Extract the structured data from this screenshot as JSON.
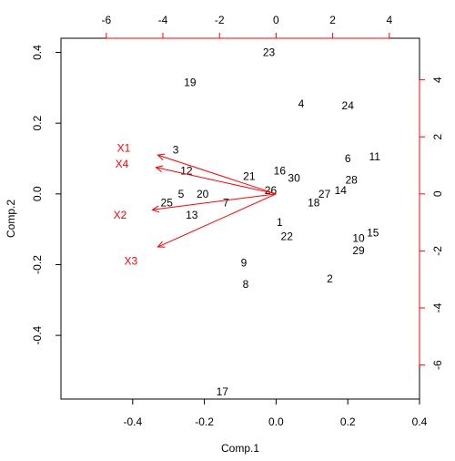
{
  "chart_data": {
    "type": "scatter",
    "subtype": "biplot",
    "title": "",
    "xlabel": "Comp.1",
    "ylabel": "Comp.2",
    "xlim": [
      -0.6,
      0.4
    ],
    "ylim": [
      -0.58,
      0.44
    ],
    "x_ticks": [
      "-0.4",
      "-0.2",
      "0.0",
      "0.2",
      "0.4"
    ],
    "y_ticks": [
      "-0.4",
      "-0.2",
      "0.0",
      "0.2",
      "0.4"
    ],
    "top_ticks": [
      "-6",
      "-4",
      "-2",
      "0",
      "2",
      "4"
    ],
    "right_ticks": [
      "-6",
      "-4",
      "-2",
      "0",
      "2",
      "4"
    ],
    "observations": [
      {
        "label": "1",
        "x": 0.01,
        "y": -0.08
      },
      {
        "label": "2",
        "x": 0.15,
        "y": -0.24
      },
      {
        "label": "3",
        "x": -0.28,
        "y": 0.125
      },
      {
        "label": "4",
        "x": 0.07,
        "y": 0.255
      },
      {
        "label": "5",
        "x": -0.265,
        "y": 0.0
      },
      {
        "label": "6",
        "x": 0.2,
        "y": 0.1
      },
      {
        "label": "7",
        "x": -0.14,
        "y": -0.025
      },
      {
        "label": "8",
        "x": -0.085,
        "y": -0.255
      },
      {
        "label": "9",
        "x": -0.09,
        "y": -0.195
      },
      {
        "label": "10",
        "x": 0.23,
        "y": -0.125
      },
      {
        "label": "11",
        "x": 0.275,
        "y": 0.105
      },
      {
        "label": "12",
        "x": -0.25,
        "y": 0.065
      },
      {
        "label": "13",
        "x": -0.235,
        "y": -0.06
      },
      {
        "label": "14",
        "x": 0.18,
        "y": 0.01
      },
      {
        "label": "15",
        "x": 0.27,
        "y": -0.11
      },
      {
        "label": "16",
        "x": 0.01,
        "y": 0.065
      },
      {
        "label": "17",
        "x": -0.15,
        "y": -0.56
      },
      {
        "label": "18",
        "x": 0.105,
        "y": -0.025
      },
      {
        "label": "19",
        "x": -0.24,
        "y": 0.315
      },
      {
        "label": "20",
        "x": -0.205,
        "y": 0.0
      },
      {
        "label": "21",
        "x": -0.075,
        "y": 0.05
      },
      {
        "label": "22",
        "x": 0.03,
        "y": -0.12
      },
      {
        "label": "23",
        "x": -0.02,
        "y": 0.4
      },
      {
        "label": "24",
        "x": 0.2,
        "y": 0.25
      },
      {
        "label": "25",
        "x": -0.305,
        "y": -0.025
      },
      {
        "label": "26",
        "x": -0.015,
        "y": 0.01
      },
      {
        "label": "27",
        "x": 0.135,
        "y": 0.0
      },
      {
        "label": "28",
        "x": 0.21,
        "y": 0.04
      },
      {
        "label": "29",
        "x": 0.23,
        "y": -0.16
      },
      {
        "label": "30",
        "x": 0.05,
        "y": 0.045
      }
    ],
    "loadings": [
      {
        "name": "X1",
        "x": -0.33,
        "y": 0.11,
        "label_x": -0.425,
        "label_y": 0.13
      },
      {
        "name": "X4",
        "x": -0.335,
        "y": 0.075,
        "label_x": -0.43,
        "label_y": 0.085
      },
      {
        "name": "X2",
        "x": -0.345,
        "y": -0.045,
        "label_x": -0.435,
        "label_y": -0.06
      },
      {
        "name": "X3",
        "x": -0.33,
        "y": -0.15,
        "label_x": -0.405,
        "label_y": -0.19
      }
    ],
    "colors": {
      "observations": "#000000",
      "loadings": "#ff0000",
      "frame": "#000000"
    }
  }
}
